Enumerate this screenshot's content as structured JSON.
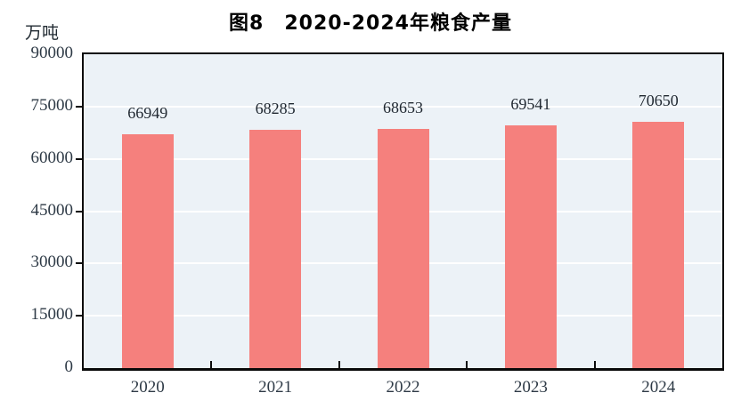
{
  "header": {
    "title": "图8　2020-2024年粮食产量"
  },
  "chart_data": {
    "type": "bar",
    "title": "图8　2020-2024年粮食产量",
    "unit_label": "万吨",
    "categories": [
      "2020",
      "2021",
      "2022",
      "2023",
      "2024"
    ],
    "values": [
      66949,
      68285,
      68653,
      69541,
      70650
    ],
    "value_labels": [
      "66949",
      "68285",
      "68653",
      "69541",
      "70650"
    ],
    "xlabel": "",
    "ylabel": "万吨",
    "ylim": [
      0,
      90000
    ],
    "ytick_step": 15000,
    "yticks": [
      0,
      15000,
      30000,
      45000,
      60000,
      75000,
      90000
    ],
    "ytick_labels": [
      "0",
      "15000",
      "30000",
      "45000",
      "60000",
      "75000",
      "90000"
    ],
    "grid": true,
    "gridline_color": "#ffffff",
    "legend": "none",
    "colors": {
      "bar_fill": "#f5807d",
      "plot_background": "#ecf2f7",
      "frame": "#0a0a0a",
      "tick_label_text": "#2e3a46",
      "value_label_text": "#1f2730",
      "title_text": "#000000"
    }
  }
}
